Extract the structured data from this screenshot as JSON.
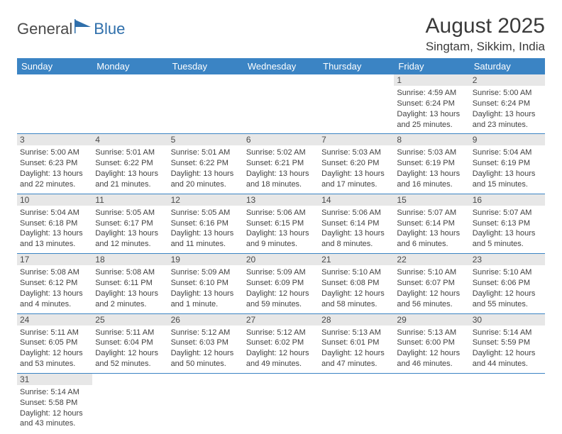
{
  "logo": {
    "text1": "General",
    "text2": "Blue"
  },
  "title": "August 2025",
  "location": "Singtam, Sikkim, India",
  "colors": {
    "header_bg": "#3b84c4",
    "header_text": "#ffffff",
    "daynum_bg": "#e7e7e7",
    "text": "#414141",
    "rule": "#3b84c4"
  },
  "daynames": [
    "Sunday",
    "Monday",
    "Tuesday",
    "Wednesday",
    "Thursday",
    "Friday",
    "Saturday"
  ],
  "weeks": [
    [
      {
        "blank": true
      },
      {
        "blank": true
      },
      {
        "blank": true
      },
      {
        "blank": true
      },
      {
        "blank": true
      },
      {
        "day": "1",
        "sunrise": "Sunrise: 4:59 AM",
        "sunset": "Sunset: 6:24 PM",
        "daylight1": "Daylight: 13 hours",
        "daylight2": "and 25 minutes."
      },
      {
        "day": "2",
        "sunrise": "Sunrise: 5:00 AM",
        "sunset": "Sunset: 6:24 PM",
        "daylight1": "Daylight: 13 hours",
        "daylight2": "and 23 minutes."
      }
    ],
    [
      {
        "day": "3",
        "sunrise": "Sunrise: 5:00 AM",
        "sunset": "Sunset: 6:23 PM",
        "daylight1": "Daylight: 13 hours",
        "daylight2": "and 22 minutes."
      },
      {
        "day": "4",
        "sunrise": "Sunrise: 5:01 AM",
        "sunset": "Sunset: 6:22 PM",
        "daylight1": "Daylight: 13 hours",
        "daylight2": "and 21 minutes."
      },
      {
        "day": "5",
        "sunrise": "Sunrise: 5:01 AM",
        "sunset": "Sunset: 6:22 PM",
        "daylight1": "Daylight: 13 hours",
        "daylight2": "and 20 minutes."
      },
      {
        "day": "6",
        "sunrise": "Sunrise: 5:02 AM",
        "sunset": "Sunset: 6:21 PM",
        "daylight1": "Daylight: 13 hours",
        "daylight2": "and 18 minutes."
      },
      {
        "day": "7",
        "sunrise": "Sunrise: 5:03 AM",
        "sunset": "Sunset: 6:20 PM",
        "daylight1": "Daylight: 13 hours",
        "daylight2": "and 17 minutes."
      },
      {
        "day": "8",
        "sunrise": "Sunrise: 5:03 AM",
        "sunset": "Sunset: 6:19 PM",
        "daylight1": "Daylight: 13 hours",
        "daylight2": "and 16 minutes."
      },
      {
        "day": "9",
        "sunrise": "Sunrise: 5:04 AM",
        "sunset": "Sunset: 6:19 PM",
        "daylight1": "Daylight: 13 hours",
        "daylight2": "and 15 minutes."
      }
    ],
    [
      {
        "day": "10",
        "sunrise": "Sunrise: 5:04 AM",
        "sunset": "Sunset: 6:18 PM",
        "daylight1": "Daylight: 13 hours",
        "daylight2": "and 13 minutes."
      },
      {
        "day": "11",
        "sunrise": "Sunrise: 5:05 AM",
        "sunset": "Sunset: 6:17 PM",
        "daylight1": "Daylight: 13 hours",
        "daylight2": "and 12 minutes."
      },
      {
        "day": "12",
        "sunrise": "Sunrise: 5:05 AM",
        "sunset": "Sunset: 6:16 PM",
        "daylight1": "Daylight: 13 hours",
        "daylight2": "and 11 minutes."
      },
      {
        "day": "13",
        "sunrise": "Sunrise: 5:06 AM",
        "sunset": "Sunset: 6:15 PM",
        "daylight1": "Daylight: 13 hours",
        "daylight2": "and 9 minutes."
      },
      {
        "day": "14",
        "sunrise": "Sunrise: 5:06 AM",
        "sunset": "Sunset: 6:14 PM",
        "daylight1": "Daylight: 13 hours",
        "daylight2": "and 8 minutes."
      },
      {
        "day": "15",
        "sunrise": "Sunrise: 5:07 AM",
        "sunset": "Sunset: 6:14 PM",
        "daylight1": "Daylight: 13 hours",
        "daylight2": "and 6 minutes."
      },
      {
        "day": "16",
        "sunrise": "Sunrise: 5:07 AM",
        "sunset": "Sunset: 6:13 PM",
        "daylight1": "Daylight: 13 hours",
        "daylight2": "and 5 minutes."
      }
    ],
    [
      {
        "day": "17",
        "sunrise": "Sunrise: 5:08 AM",
        "sunset": "Sunset: 6:12 PM",
        "daylight1": "Daylight: 13 hours",
        "daylight2": "and 4 minutes."
      },
      {
        "day": "18",
        "sunrise": "Sunrise: 5:08 AM",
        "sunset": "Sunset: 6:11 PM",
        "daylight1": "Daylight: 13 hours",
        "daylight2": "and 2 minutes."
      },
      {
        "day": "19",
        "sunrise": "Sunrise: 5:09 AM",
        "sunset": "Sunset: 6:10 PM",
        "daylight1": "Daylight: 13 hours",
        "daylight2": "and 1 minute."
      },
      {
        "day": "20",
        "sunrise": "Sunrise: 5:09 AM",
        "sunset": "Sunset: 6:09 PM",
        "daylight1": "Daylight: 12 hours",
        "daylight2": "and 59 minutes."
      },
      {
        "day": "21",
        "sunrise": "Sunrise: 5:10 AM",
        "sunset": "Sunset: 6:08 PM",
        "daylight1": "Daylight: 12 hours",
        "daylight2": "and 58 minutes."
      },
      {
        "day": "22",
        "sunrise": "Sunrise: 5:10 AM",
        "sunset": "Sunset: 6:07 PM",
        "daylight1": "Daylight: 12 hours",
        "daylight2": "and 56 minutes."
      },
      {
        "day": "23",
        "sunrise": "Sunrise: 5:10 AM",
        "sunset": "Sunset: 6:06 PM",
        "daylight1": "Daylight: 12 hours",
        "daylight2": "and 55 minutes."
      }
    ],
    [
      {
        "day": "24",
        "sunrise": "Sunrise: 5:11 AM",
        "sunset": "Sunset: 6:05 PM",
        "daylight1": "Daylight: 12 hours",
        "daylight2": "and 53 minutes."
      },
      {
        "day": "25",
        "sunrise": "Sunrise: 5:11 AM",
        "sunset": "Sunset: 6:04 PM",
        "daylight1": "Daylight: 12 hours",
        "daylight2": "and 52 minutes."
      },
      {
        "day": "26",
        "sunrise": "Sunrise: 5:12 AM",
        "sunset": "Sunset: 6:03 PM",
        "daylight1": "Daylight: 12 hours",
        "daylight2": "and 50 minutes."
      },
      {
        "day": "27",
        "sunrise": "Sunrise: 5:12 AM",
        "sunset": "Sunset: 6:02 PM",
        "daylight1": "Daylight: 12 hours",
        "daylight2": "and 49 minutes."
      },
      {
        "day": "28",
        "sunrise": "Sunrise: 5:13 AM",
        "sunset": "Sunset: 6:01 PM",
        "daylight1": "Daylight: 12 hours",
        "daylight2": "and 47 minutes."
      },
      {
        "day": "29",
        "sunrise": "Sunrise: 5:13 AM",
        "sunset": "Sunset: 6:00 PM",
        "daylight1": "Daylight: 12 hours",
        "daylight2": "and 46 minutes."
      },
      {
        "day": "30",
        "sunrise": "Sunrise: 5:14 AM",
        "sunset": "Sunset: 5:59 PM",
        "daylight1": "Daylight: 12 hours",
        "daylight2": "and 44 minutes."
      }
    ],
    [
      {
        "day": "31",
        "sunrise": "Sunrise: 5:14 AM",
        "sunset": "Sunset: 5:58 PM",
        "daylight1": "Daylight: 12 hours",
        "daylight2": "and 43 minutes."
      },
      {
        "blank": true
      },
      {
        "blank": true
      },
      {
        "blank": true
      },
      {
        "blank": true
      },
      {
        "blank": true
      },
      {
        "blank": true
      }
    ]
  ]
}
